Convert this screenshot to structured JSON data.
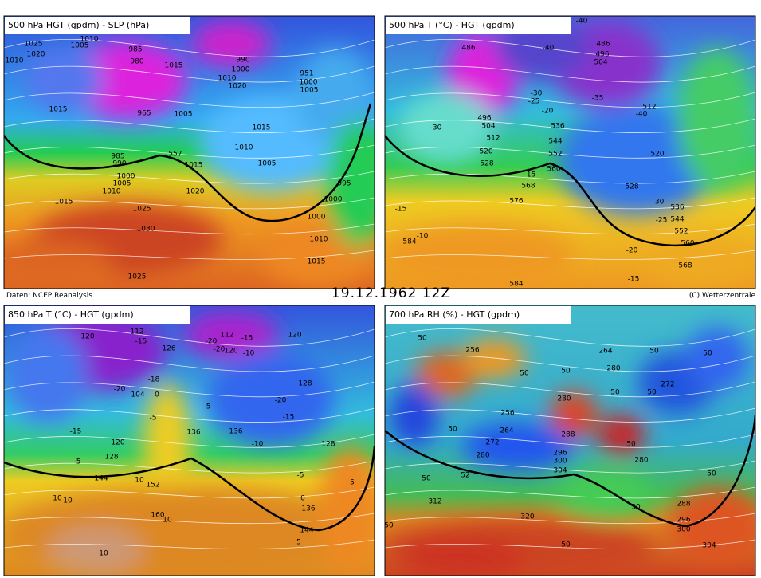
{
  "header": {
    "source": "Daten: NCEP Reanalysis",
    "datetime": "19.12.1962 12Z",
    "copyright": "(C) Wetterzentrale"
  },
  "panels": [
    {
      "title": "500 hPa HGT (gpdm) - SLP (hPa)",
      "labels": [
        "1025",
        "1020",
        "1010",
        "1010",
        "1005",
        "985",
        "980",
        "1015",
        "990",
        "1000",
        "1010",
        "1020",
        "951",
        "1000",
        "1005",
        "1015",
        "965",
        "1005",
        "1015",
        "1010",
        "1005",
        "985",
        "990",
        "1000",
        "1005",
        "1010",
        "557",
        "1015",
        "1020",
        "995",
        "1000",
        "1000",
        "1010",
        "1015",
        "1025",
        "1030",
        "1025",
        "1015"
      ]
    },
    {
      "title": "500 hPa T (°C) - HGT (gpdm)",
      "labels": [
        "486",
        "486",
        "496",
        "504",
        "-40",
        "-40",
        "-30",
        "-25",
        "-35",
        "512",
        "-40",
        "496",
        "504",
        "-30",
        "536",
        "512",
        "544",
        "520",
        "552",
        "528",
        "560",
        "-15",
        "-20",
        "568",
        "520",
        "528",
        "-30",
        "536",
        "-25",
        "544",
        "576",
        "-15",
        "-10",
        "584",
        "552",
        "560",
        "-20",
        "568",
        "-15",
        "584"
      ]
    },
    {
      "title": "850 hPa T (°C) - HGT (gpdm)",
      "labels": [
        "112",
        "120",
        "-15",
        "126",
        "112",
        "-20",
        "-20",
        "120",
        "-15",
        "-10",
        "120",
        "-18",
        "-20",
        "104",
        "0",
        "128",
        "-20",
        "-5",
        "-5",
        "-15",
        "-15",
        "136",
        "136",
        "-10",
        "120",
        "128",
        "-5",
        "128",
        "144",
        "-5",
        "10",
        "152",
        "5",
        "10",
        "10",
        "0",
        "136",
        "160",
        "10",
        "144",
        "5",
        "10"
      ]
    },
    {
      "title": "700 hPa RH (%) - HGT (gpdm)",
      "labels": [
        "50",
        "256",
        "264",
        "50",
        "50",
        "280",
        "50",
        "50",
        "272",
        "280",
        "50",
        "50",
        "256",
        "264",
        "50",
        "288",
        "272",
        "50",
        "280",
        "296",
        "300",
        "304",
        "280",
        "50",
        "52",
        "50",
        "312",
        "288",
        "50",
        "320",
        "296",
        "300",
        "50",
        "304",
        "50"
      ]
    }
  ]
}
